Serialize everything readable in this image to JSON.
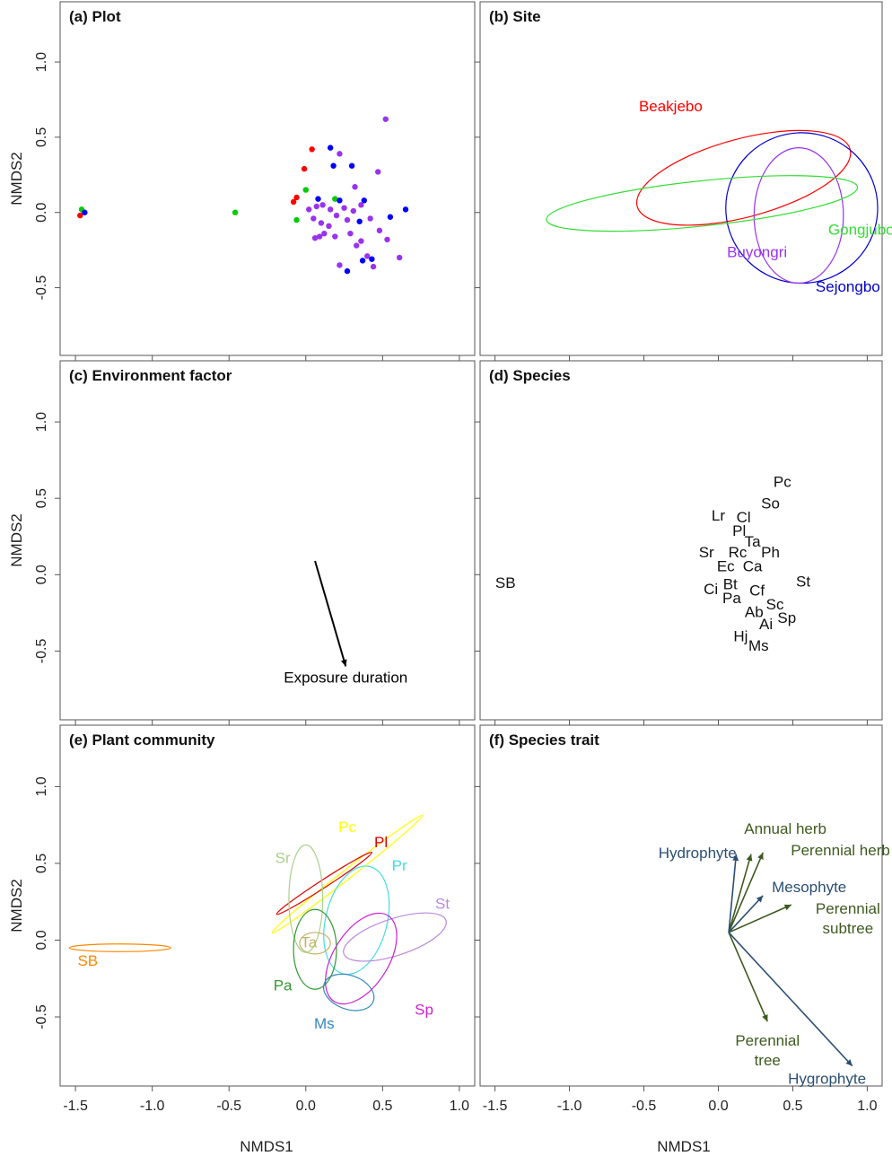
{
  "figure": {
    "xlabel": "NMDS1",
    "ylabel": "NMDS2",
    "xlim": [
      -1.6,
      1.1
    ],
    "ylim": [
      -0.95,
      1.4
    ],
    "xticks": [
      "-1.5",
      "-1.0",
      "-0.5",
      "0.0",
      "0.5",
      "1.0"
    ],
    "yticks": [
      "-0.5",
      "0.0",
      "0.5",
      "1.0"
    ]
  },
  "chart_data": [
    {
      "id": "a",
      "type": "scatter",
      "title": "(a) Plot",
      "groups": [
        {
          "color": "#ff0000",
          "points": [
            [
              -1.47,
              -0.02
            ],
            [
              -0.06,
              0.1
            ],
            [
              -0.08,
              0.07
            ],
            [
              -0.01,
              0.29
            ],
            [
              0.04,
              0.42
            ]
          ]
        },
        {
          "color": "#00cc00",
          "points": [
            [
              -1.46,
              0.02
            ],
            [
              -0.46,
              0.0
            ],
            [
              -0.06,
              -0.05
            ],
            [
              0.0,
              0.15
            ],
            [
              0.19,
              0.09
            ]
          ]
        },
        {
          "color": "#0000ff",
          "points": [
            [
              -1.44,
              0.0
            ],
            [
              0.08,
              0.09
            ],
            [
              0.16,
              0.43
            ],
            [
              0.18,
              0.31
            ],
            [
              0.22,
              0.08
            ],
            [
              0.3,
              0.31
            ],
            [
              0.38,
              0.08
            ],
            [
              0.35,
              -0.06
            ],
            [
              0.37,
              -0.32
            ],
            [
              0.27,
              -0.39
            ],
            [
              0.43,
              -0.31
            ],
            [
              0.55,
              -0.03
            ],
            [
              0.65,
              0.02
            ]
          ]
        },
        {
          "color": "#9933ee",
          "points": [
            [
              0.52,
              0.62
            ],
            [
              0.22,
              0.39
            ],
            [
              0.32,
              0.17
            ],
            [
              0.47,
              0.27
            ],
            [
              0.02,
              0.02
            ],
            [
              0.07,
              0.04
            ],
            [
              0.11,
              0.05
            ],
            [
              0.16,
              0.02
            ],
            [
              0.25,
              0.03
            ],
            [
              0.31,
              0.01
            ],
            [
              0.05,
              -0.04
            ],
            [
              0.1,
              -0.07
            ],
            [
              0.2,
              -0.02
            ],
            [
              0.27,
              -0.05
            ],
            [
              0.36,
              0.05
            ],
            [
              0.42,
              -0.04
            ],
            [
              0.12,
              -0.14
            ],
            [
              0.09,
              -0.16
            ],
            [
              0.19,
              -0.16
            ],
            [
              0.29,
              -0.14
            ],
            [
              0.36,
              -0.19
            ],
            [
              0.48,
              -0.12
            ],
            [
              0.53,
              -0.18
            ],
            [
              0.22,
              -0.35
            ],
            [
              0.33,
              -0.22
            ],
            [
              0.4,
              -0.29
            ],
            [
              0.61,
              -0.3
            ],
            [
              0.06,
              -0.17
            ],
            [
              0.15,
              -0.09
            ],
            [
              0.44,
              -0.36
            ]
          ]
        }
      ]
    },
    {
      "id": "b",
      "type": "scatter",
      "title": "(b) Site",
      "ellipses": [
        {
          "name": "Beakjebo",
          "color": "#ff0000",
          "cx": 0.17,
          "cy": 0.23,
          "rx": 0.74,
          "ry": 0.26,
          "angle": 15,
          "label_at": [
            -0.32,
            0.7
          ]
        },
        {
          "name": "Sejongbo",
          "color": "#0000cc",
          "cx": 0.56,
          "cy": 0.03,
          "rx": 0.51,
          "ry": 0.5,
          "angle": 0,
          "label_at": [
            0.87,
            -0.5
          ]
        },
        {
          "name": "Buyongri",
          "color": "#9933ee",
          "cx": 0.54,
          "cy": -0.02,
          "rx": 0.3,
          "ry": 0.45,
          "angle": 0,
          "label_at": [
            0.26,
            -0.27
          ]
        },
        {
          "name": "Gongjubo",
          "color": "#33dd33",
          "cx": -0.11,
          "cy": 0.06,
          "rx": 1.05,
          "ry": 0.15,
          "angle": 6,
          "label_at": [
            0.96,
            -0.12
          ]
        }
      ]
    },
    {
      "id": "c",
      "type": "vector",
      "title": "(c) Environment factor",
      "arrows": [
        {
          "name": "Exposure duration",
          "color": "#000000",
          "from": [
            0.06,
            0.09
          ],
          "to": [
            0.26,
            -0.6
          ],
          "label_at": [
            0.26,
            -0.68
          ]
        }
      ]
    },
    {
      "id": "d",
      "type": "scatter",
      "title": "(d) Species",
      "labels": [
        {
          "text": "Pc",
          "x": 0.43,
          "y": 0.6
        },
        {
          "text": "So",
          "x": 0.35,
          "y": 0.46
        },
        {
          "text": "Lr",
          "x": 0.0,
          "y": 0.38
        },
        {
          "text": "Cl",
          "x": 0.17,
          "y": 0.37
        },
        {
          "text": "Pl",
          "x": 0.14,
          "y": 0.28
        },
        {
          "text": "Ta",
          "x": 0.23,
          "y": 0.21
        },
        {
          "text": "Ph",
          "x": 0.35,
          "y": 0.14
        },
        {
          "text": "Sr",
          "x": -0.08,
          "y": 0.14
        },
        {
          "text": "Rc",
          "x": 0.13,
          "y": 0.14
        },
        {
          "text": "Ec",
          "x": 0.05,
          "y": 0.05
        },
        {
          "text": "Ca",
          "x": 0.23,
          "y": 0.05
        },
        {
          "text": "SB",
          "x": -1.43,
          "y": -0.06
        },
        {
          "text": "St",
          "x": 0.57,
          "y": -0.05
        },
        {
          "text": "Bt",
          "x": 0.08,
          "y": -0.07
        },
        {
          "text": "Ci",
          "x": -0.05,
          "y": -0.1
        },
        {
          "text": "Cf",
          "x": 0.26,
          "y": -0.11
        },
        {
          "text": "Pa",
          "x": 0.09,
          "y": -0.16
        },
        {
          "text": "Sc",
          "x": 0.38,
          "y": -0.2
        },
        {
          "text": "Ab",
          "x": 0.24,
          "y": -0.25
        },
        {
          "text": "Sp",
          "x": 0.46,
          "y": -0.29
        },
        {
          "text": "Ai",
          "x": 0.32,
          "y": -0.33
        },
        {
          "text": "Hj",
          "x": 0.15,
          "y": -0.41
        },
        {
          "text": "Ms",
          "x": 0.27,
          "y": -0.47
        }
      ]
    },
    {
      "id": "e",
      "type": "scatter",
      "title": "(e) Plant community",
      "ellipses": [
        {
          "name": "Pc",
          "color": "#ffff00",
          "cx": 0.27,
          "cy": 0.43,
          "rx": 0.62,
          "ry": 0.03,
          "angle": 38,
          "label_at": [
            0.27,
            0.73
          ]
        },
        {
          "name": "Pl",
          "color": "#dd0000",
          "cx": 0.12,
          "cy": 0.37,
          "rx": 0.37,
          "ry": 0.025,
          "angle": 33,
          "label_at": [
            0.49,
            0.63
          ]
        },
        {
          "name": "Sr",
          "color": "#aad08a",
          "cx": 0.0,
          "cy": 0.27,
          "rx": 0.11,
          "ry": 0.35,
          "angle": 0,
          "label_at": [
            -0.15,
            0.53
          ]
        },
        {
          "name": "Pr",
          "color": "#44dddd",
          "cx": 0.33,
          "cy": 0.13,
          "rx": 0.2,
          "ry": 0.36,
          "angle": -14,
          "label_at": [
            0.61,
            0.48
          ]
        },
        {
          "name": "St",
          "color": "#bb88dd",
          "cx": 0.58,
          "cy": 0.02,
          "rx": 0.35,
          "ry": 0.12,
          "angle": 18,
          "label_at": [
            0.89,
            0.23
          ]
        },
        {
          "name": "Ta",
          "color": "#c2b466",
          "cx": 0.06,
          "cy": -0.02,
          "rx": 0.1,
          "ry": 0.07,
          "angle": 0,
          "label_at": [
            0.02,
            -0.02
          ]
        },
        {
          "name": "Pa",
          "color": "#339933",
          "cx": 0.06,
          "cy": -0.06,
          "rx": 0.14,
          "ry": 0.26,
          "angle": 0,
          "label_at": [
            -0.15,
            -0.3
          ]
        },
        {
          "name": "Sp",
          "color": "#cc22cc",
          "cx": 0.36,
          "cy": -0.12,
          "rx": 0.18,
          "ry": 0.33,
          "angle": -32,
          "label_at": [
            0.77,
            -0.46
          ]
        },
        {
          "name": "Ms",
          "color": "#3388bb",
          "cx": 0.28,
          "cy": -0.34,
          "rx": 0.17,
          "ry": 0.11,
          "angle": -20,
          "label_at": [
            0.12,
            -0.55
          ]
        },
        {
          "name": "SB",
          "color": "#ff8800",
          "cx": -1.21,
          "cy": -0.05,
          "rx": 0.33,
          "ry": 0.025,
          "angle": 0,
          "label_at": [
            -1.42,
            -0.14
          ]
        }
      ]
    },
    {
      "id": "f",
      "type": "vector",
      "title": "(f) Species trait",
      "origin": [
        0.07,
        0.05
      ],
      "arrows": [
        {
          "name": "Annual herb",
          "color": "#3d5a1e",
          "to": [
            0.22,
            0.56
          ],
          "label_at": [
            0.45,
            0.72
          ]
        },
        {
          "name": "Perennial herb",
          "color": "#3d5a1e",
          "to": [
            0.3,
            0.57
          ],
          "label_at": [
            0.82,
            0.58
          ]
        },
        {
          "name": "Hydrophyte",
          "color": "#2a4f73",
          "to": [
            0.12,
            0.56
          ],
          "label_at": [
            -0.14,
            0.56
          ]
        },
        {
          "name": "Mesophyte",
          "color": "#2a4f73",
          "to": [
            0.3,
            0.29
          ],
          "label_at": [
            0.61,
            0.34
          ]
        },
        {
          "name": "Perennial",
          "color": "#3d5a1e",
          "to": [
            0.49,
            0.23
          ],
          "label_at": [
            0.87,
            0.2
          ]
        },
        {
          "name": "subtree",
          "color": "#3d5a1e",
          "label_at": [
            0.87,
            0.07
          ]
        },
        {
          "name": "Perennial",
          "color": "#3d5a1e",
          "to": [
            0.33,
            -0.53
          ],
          "label_at": [
            0.33,
            -0.66
          ]
        },
        {
          "name": "tree",
          "color": "#3d5a1e",
          "label_at": [
            0.33,
            -0.79
          ]
        },
        {
          "name": "Hygrophyte",
          "color": "#2a4f73",
          "to": [
            0.9,
            -0.82
          ],
          "label_at": [
            0.73,
            -0.91
          ]
        }
      ]
    }
  ]
}
